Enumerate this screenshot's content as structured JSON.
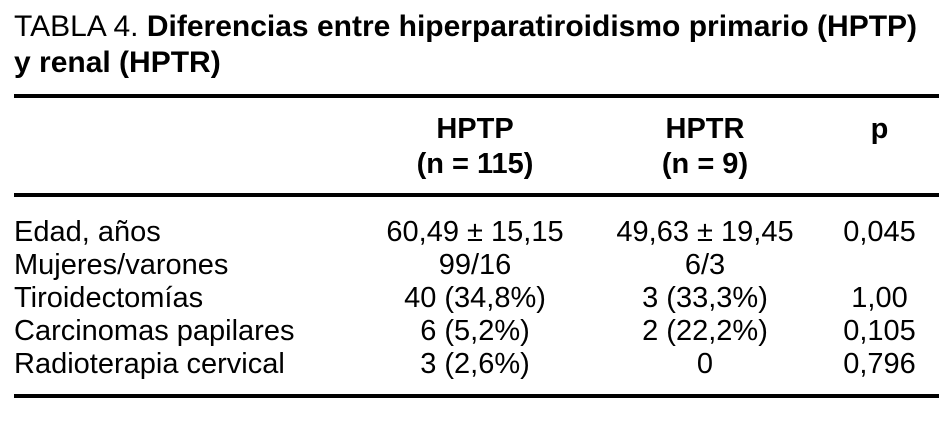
{
  "title": {
    "prefix": "TABLA 4.",
    "bold_line1": "Diferencias entre hiperparatiroidismo primario (HPTP)",
    "bold_line2": "y renal (HPTR)"
  },
  "table": {
    "columns": {
      "hptp": {
        "name": "HPTP",
        "n": "(n = 115)"
      },
      "hptr": {
        "name": "HPTR",
        "n": "(n = 9)"
      },
      "p": "p"
    },
    "rows": [
      {
        "label": "Edad, años",
        "hptp": "60,49 ± 15,15",
        "hptr": "49,63 ± 19,45",
        "p": "0,045"
      },
      {
        "label": "Mujeres/varones",
        "hptp": "99/16",
        "hptr": "6/3",
        "p": ""
      },
      {
        "label": "Tiroidectomías",
        "hptp": "40 (34,8%)",
        "hptr": "3 (33,3%)",
        "p": "1,00"
      },
      {
        "label": "Carcinomas papilares",
        "hptp": "6 (5,2%)",
        "hptr": "2 (22,2%)",
        "p": "0,105"
      },
      {
        "label": "Radioterapia cervical",
        "hptp": "3 (2,6%)",
        "hptr": "0",
        "p": "0,796"
      }
    ]
  },
  "colors": {
    "text": "#000000",
    "background": "#ffffff",
    "rule": "#000000"
  }
}
